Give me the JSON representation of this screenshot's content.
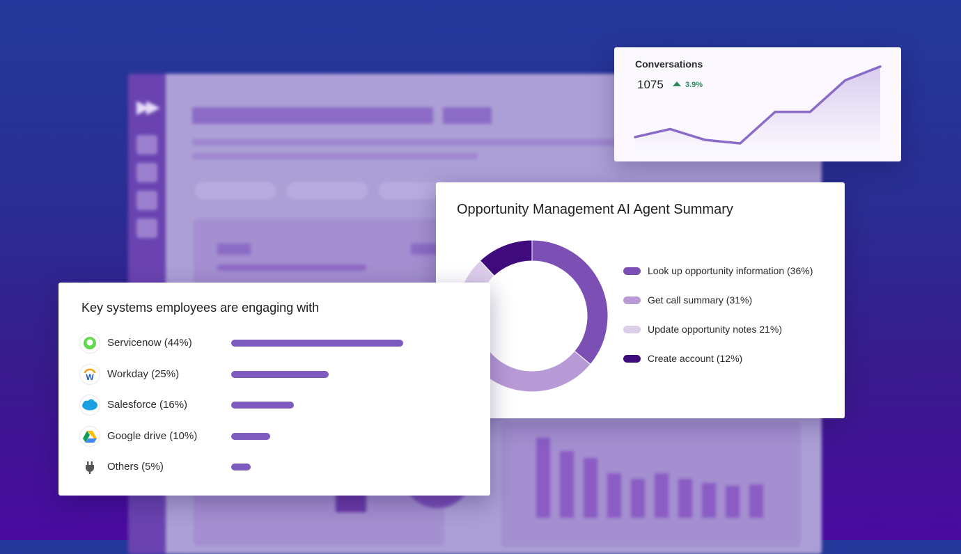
{
  "colors": {
    "accent": "#7e5cbf",
    "positive": "#2e8a57"
  },
  "conversations": {
    "title": "Conversations",
    "value": "1075",
    "delta": "3.9%",
    "chart_data": {
      "type": "area",
      "title": "Conversations",
      "x": [
        1,
        2,
        3,
        4,
        5,
        6,
        7,
        8
      ],
      "values": [
        28,
        42,
        23,
        17,
        72,
        72,
        127,
        151
      ],
      "ylim": [
        0,
        170
      ],
      "grid": false,
      "legend": "none"
    }
  },
  "opportunity": {
    "title": "Opportunity Management AI Agent Summary",
    "chart_data": {
      "type": "pie",
      "style": "donut",
      "title": "Opportunity Management AI Agent Summary",
      "categories": [
        "Look up opportunity information (36%)",
        "Get call summary (31%)",
        "Update opportunity notes 21%)",
        "Create account (12%)"
      ],
      "values": [
        36,
        31,
        21,
        12
      ],
      "colors": [
        "#7b4fb4",
        "#b89ad6",
        "#dccdeb",
        "#3e0a7c"
      ],
      "legend": "right"
    }
  },
  "key_systems": {
    "title": "Key systems employees are engaging with",
    "chart_data": {
      "type": "bar",
      "orientation": "horizontal",
      "title": "Key systems employees are engaging with",
      "categories": [
        "Servicenow (44%)",
        "Workday (25%)",
        "Salesforce (16%)",
        "Google drive (10%)",
        "Others (5%)"
      ],
      "values": [
        44,
        25,
        16,
        10,
        5
      ],
      "icons": [
        "servicenow-icon",
        "workday-icon",
        "salesforce-icon",
        "google-drive-icon",
        "plug-icon"
      ],
      "legend": "none",
      "grid": false
    }
  }
}
